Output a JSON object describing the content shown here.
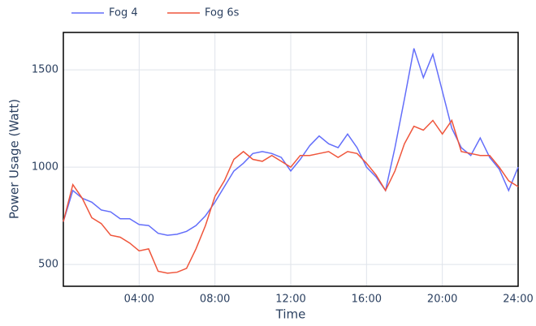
{
  "chart_data": {
    "type": "line",
    "x_label": "Time",
    "y_label": "Power Usage (Watt)",
    "x": [
      0,
      0.5,
      1,
      1.5,
      2,
      2.5,
      3,
      3.5,
      4,
      4.5,
      5,
      5.5,
      6,
      6.5,
      7,
      7.5,
      8,
      8.5,
      9,
      9.5,
      10,
      10.5,
      11,
      11.5,
      12,
      12.5,
      13,
      13.5,
      14,
      14.5,
      15,
      15.5,
      16,
      16.5,
      17,
      17.5,
      18,
      18.5,
      19,
      19.5,
      20,
      20.5,
      21,
      21.5,
      22,
      22.5,
      23,
      23.5,
      24
    ],
    "series": [
      {
        "name": "Fog 4",
        "color": "#636efa",
        "values": [
          720,
          880,
          840,
          820,
          780,
          770,
          735,
          735,
          705,
          700,
          660,
          650,
          655,
          670,
          700,
          750,
          820,
          900,
          980,
          1020,
          1070,
          1080,
          1070,
          1050,
          980,
          1040,
          1110,
          1160,
          1120,
          1100,
          1170,
          1100,
          1000,
          950,
          880,
          1100,
          1350,
          1610,
          1460,
          1580,
          1390,
          1200,
          1100,
          1060,
          1150,
          1050,
          990,
          880,
          1000
        ]
      },
      {
        "name": "Fog 6s",
        "color": "#ef553b",
        "values": [
          720,
          910,
          840,
          740,
          710,
          650,
          640,
          610,
          570,
          580,
          465,
          455,
          460,
          480,
          580,
          700,
          850,
          930,
          1040,
          1080,
          1040,
          1030,
          1060,
          1030,
          1000,
          1060,
          1060,
          1070,
          1080,
          1050,
          1080,
          1070,
          1020,
          960,
          880,
          980,
          1120,
          1210,
          1190,
          1240,
          1170,
          1240,
          1080,
          1070,
          1060,
          1060,
          1000,
          930,
          900
        ]
      }
    ],
    "xlim": [
      0,
      24
    ],
    "xticks": [
      {
        "value": 4,
        "label": "04:00"
      },
      {
        "value": 8,
        "label": "08:00"
      },
      {
        "value": 12,
        "label": "12:00"
      },
      {
        "value": 16,
        "label": "16:00"
      },
      {
        "value": 20,
        "label": "20:00"
      },
      {
        "value": 24,
        "label": "24:00"
      }
    ],
    "ylim": [
      388,
      1692
    ],
    "yticks": [
      500,
      1000,
      1500
    ],
    "grid": true
  }
}
